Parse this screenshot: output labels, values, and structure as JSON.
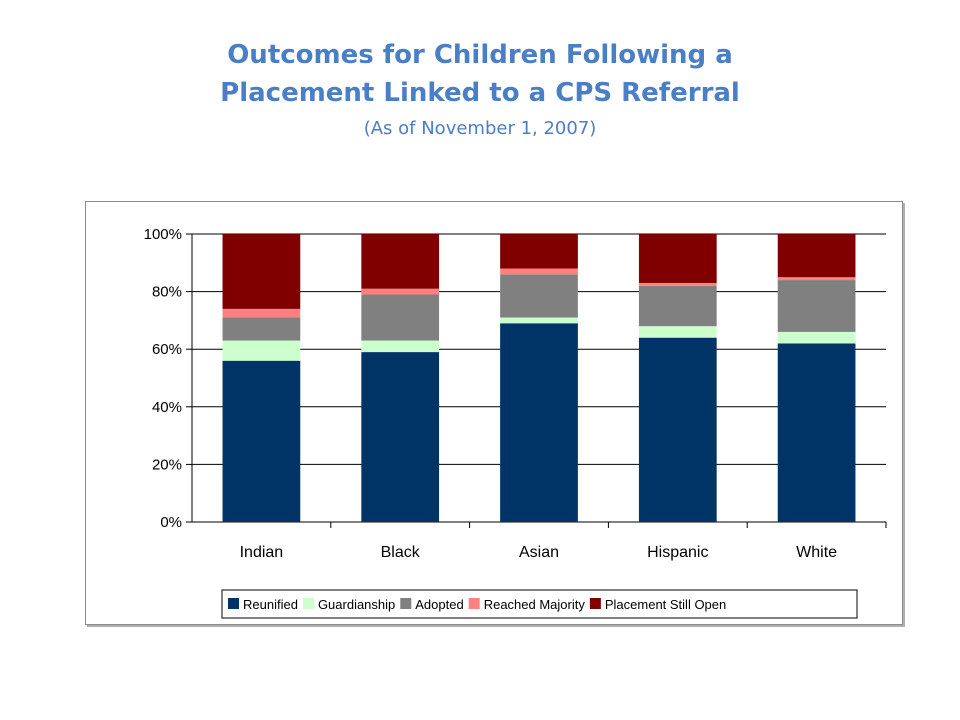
{
  "title": {
    "line1": "Outcomes for Children Following a",
    "line2": "Placement Linked to a CPS Referral",
    "subtitle": "(As of November 1, 2007)"
  },
  "chart_data": {
    "type": "bar",
    "stacked": true,
    "percent": true,
    "categories": [
      "Indian",
      "Black",
      "Asian",
      "Hispanic",
      "White"
    ],
    "series": [
      {
        "name": "Reunified",
        "color": "#003366",
        "values": [
          56,
          59,
          69,
          64,
          62
        ]
      },
      {
        "name": "Guardianship",
        "color": "#ccffcc",
        "values": [
          7,
          4,
          2,
          4,
          4
        ]
      },
      {
        "name": "Adopted",
        "color": "#808080",
        "values": [
          8,
          16,
          15,
          14,
          18
        ]
      },
      {
        "name": "Reached Majority",
        "color": "#ff8080",
        "values": [
          3,
          2,
          2,
          1,
          1
        ]
      },
      {
        "name": "Placement Still Open",
        "color": "#800000",
        "values": [
          26,
          19,
          12,
          17,
          15
        ]
      }
    ],
    "ylim": [
      0,
      100
    ],
    "yticks": [
      "0%",
      "20%",
      "40%",
      "60%",
      "80%",
      "100%"
    ],
    "grid": true,
    "legend": "bottom"
  }
}
